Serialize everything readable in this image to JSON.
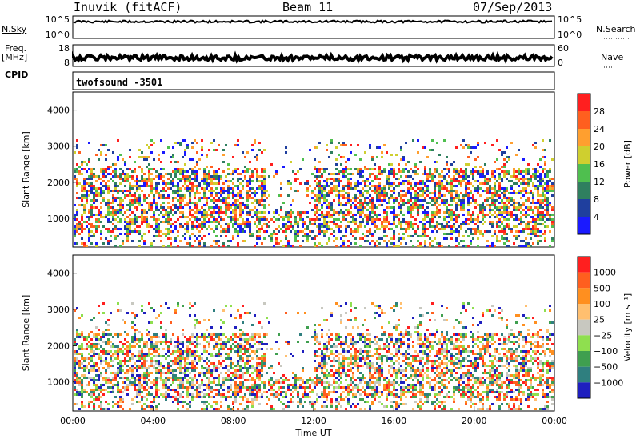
{
  "header": {
    "station": "Inuvik (fitACF)",
    "beam": "Beam 11",
    "date": "07/Sep/2013"
  },
  "left_labels": {
    "nsky": "N.Sky",
    "freq_line1": "Freq.",
    "freq_line2": "[MHz]",
    "cpid": "CPID"
  },
  "right_labels": {
    "nsearch": "N.Search",
    "nave": "Nave"
  },
  "cpid_text": "twofsound  -3501",
  "colors": {
    "trace": "#000000",
    "power_scale": [
      "#1a1aff",
      "#1f3f9e",
      "#2f7f5f",
      "#4fbf4f",
      "#cfcf2f",
      "#ff9f2f",
      "#ff5f1f",
      "#ff1f1f"
    ],
    "velocity_scale": [
      "#1f1fbf",
      "#2f7f7f",
      "#3f9f4f",
      "#8fdf4f",
      "#c8c8c0",
      "#ffbf6f",
      "#ff8f1f",
      "#ff5f1f",
      "#ff1f1f"
    ]
  },
  "chart_data": [
    {
      "type": "line",
      "name": "nsky-nsearch-panel",
      "yticks_left": [
        "10^5",
        "10^0"
      ],
      "yticks_right": [
        "10^5",
        "10^0"
      ],
      "level_fraction": 0.75
    },
    {
      "type": "line",
      "name": "freq-nave-panel",
      "yticks_left": [
        "18",
        "8"
      ],
      "yticks_right": [
        "60",
        "0"
      ],
      "level_fraction": 0.4
    },
    {
      "type": "heatmap",
      "name": "power-panel",
      "ylabel": "Slant Range [km]",
      "ylim": [
        200,
        4500
      ],
      "yticks": [
        1000,
        2000,
        3000,
        4000
      ],
      "colorbar": {
        "label": "Power [dB]",
        "ticks": [
          "28",
          "24",
          "20",
          "16",
          "12",
          "8",
          "4"
        ]
      }
    },
    {
      "type": "heatmap",
      "name": "velocity-panel",
      "ylabel": "Slant Range [km]",
      "ylim": [
        200,
        4500
      ],
      "yticks": [
        1000,
        2000,
        3000,
        4000
      ],
      "colorbar": {
        "label": "Velocity [m s⁻¹]",
        "ticks": [
          "1000",
          "500",
          "100",
          "25",
          "−25",
          "−100",
          "−500",
          "−1000"
        ]
      }
    }
  ],
  "xaxis": {
    "label": "Time UT",
    "ticks": [
      "00:00",
      "04:00",
      "08:00",
      "12:00",
      "16:00",
      "20:00",
      "00:00"
    ]
  }
}
